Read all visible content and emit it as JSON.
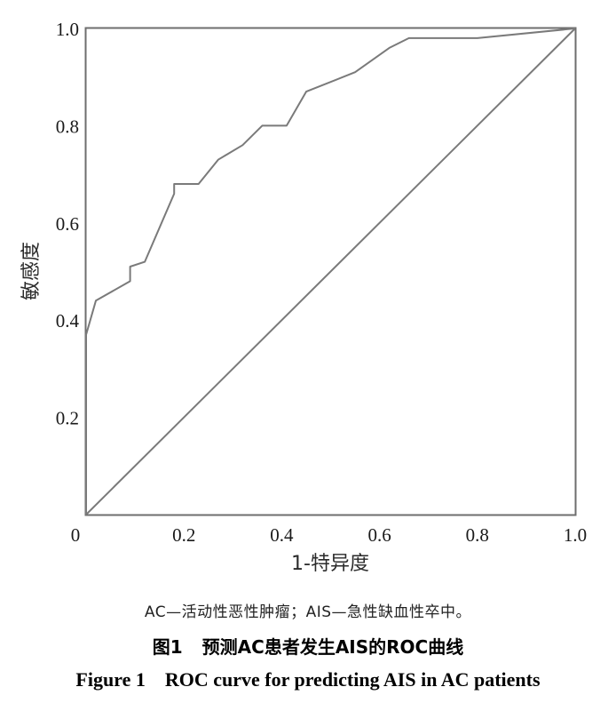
{
  "chart_data": {
    "type": "line",
    "xlabel": "1-特异度",
    "ylabel": "敏感度",
    "xlim": [
      0,
      1.0
    ],
    "ylim": [
      0,
      1.0
    ],
    "x_ticks": [
      "0",
      "0.2",
      "0.4",
      "0.6",
      "0.8",
      "1.0"
    ],
    "y_ticks": [
      "0.2",
      "0.4",
      "0.6",
      "0.8",
      "1.0"
    ],
    "grid": false,
    "series": [
      {
        "style": "roc-curve",
        "color": "#7a7a7a",
        "x": [
          0.0,
          0.0,
          0.02,
          0.09,
          0.09,
          0.12,
          0.18,
          0.18,
          0.23,
          0.27,
          0.32,
          0.36,
          0.41,
          0.45,
          0.55,
          0.62,
          0.66,
          0.8,
          1.0
        ],
        "y": [
          0.0,
          0.37,
          0.44,
          0.48,
          0.51,
          0.52,
          0.66,
          0.68,
          0.68,
          0.73,
          0.76,
          0.8,
          0.8,
          0.87,
          0.91,
          0.96,
          0.98,
          0.98,
          1.0
        ]
      },
      {
        "style": "reference-diagonal",
        "color": "#7a7a7a",
        "x": [
          0.0,
          1.0
        ],
        "y": [
          0.0,
          1.0
        ]
      }
    ]
  },
  "caption": {
    "note": "AC—活动性恶性肿瘤；AIS—急性缺血性卒中。",
    "zh_label": "图1",
    "zh_title": "预测AC患者发生AIS的ROC曲线",
    "en_label": "Figure 1",
    "en_title": "ROC curve for predicting AIS in AC patients"
  }
}
